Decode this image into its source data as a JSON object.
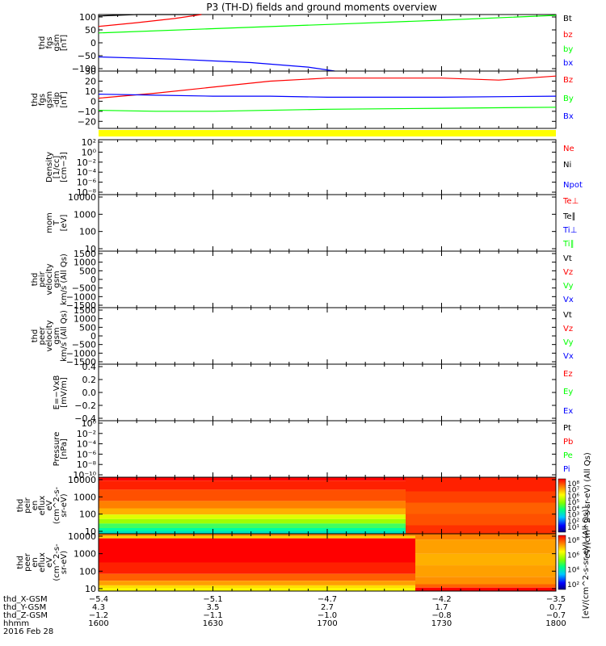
{
  "title": "P3 (TH-D) fields and ground moments overview",
  "colors": {
    "black": "#000000",
    "red": "#ff0000",
    "green": "#00ff00",
    "blue": "#0000ff",
    "yellow": "#ffff00"
  },
  "chart_data": [
    {
      "type": "line",
      "ylabel": [
        "thd",
        "fgs",
        "gsm",
        "[nT]"
      ],
      "ylim": [
        -100,
        100
      ],
      "yticks": [
        "100",
        "50",
        "0",
        "−50",
        "−100"
      ],
      "legend": [
        {
          "name": "Bt",
          "color": "black"
        },
        {
          "name": "bz",
          "color": "red"
        },
        {
          "name": "by",
          "color": "green"
        },
        {
          "name": "bx",
          "color": "blue"
        }
      ],
      "series": [
        {
          "name": "Bt",
          "color": "black",
          "x": [
            1600,
            1610,
            1620,
            1627
          ],
          "y": [
            95,
            100,
            104,
            106
          ]
        },
        {
          "name": "bz",
          "color": "red",
          "x": [
            1600,
            1610,
            1620,
            1627
          ],
          "y": [
            58,
            71,
            86,
            100
          ]
        },
        {
          "name": "by",
          "color": "green",
          "x": [
            1600,
            1630,
            1700,
            1730,
            1800
          ],
          "y": [
            35,
            50,
            65,
            80,
            97
          ]
        },
        {
          "name": "bx",
          "color": "blue",
          "x": [
            1600,
            1620,
            1640,
            1655,
            1702
          ],
          "y": [
            -50,
            -58,
            -70,
            -86,
            -100
          ]
        }
      ]
    },
    {
      "type": "line",
      "ylabel": [
        "thd",
        "fgs",
        "gsm",
        "-dip",
        "[nT]"
      ],
      "ylim": [
        -27,
        30
      ],
      "yticks": [
        "30",
        "20",
        "10",
        "0",
        "−10",
        "−20"
      ],
      "yticks_values": [
        30,
        20,
        10,
        0,
        -10,
        -20
      ],
      "legend": [
        {
          "name": "Bz",
          "color": "red"
        },
        {
          "name": "By",
          "color": "green"
        },
        {
          "name": "Bx",
          "color": "blue"
        }
      ],
      "series": [
        {
          "name": "Bz",
          "color": "red",
          "x": [
            1600,
            1615,
            1630,
            1645,
            1700,
            1715,
            1730,
            1745,
            1800
          ],
          "y": [
            3,
            8,
            14,
            20,
            23,
            23,
            23,
            21,
            25
          ]
        },
        {
          "name": "By",
          "color": "green",
          "x": [
            1600,
            1615,
            1630,
            1700,
            1730,
            1800
          ],
          "y": [
            -9,
            -10,
            -10,
            -8,
            -7,
            -6
          ]
        },
        {
          "name": "Bx",
          "color": "blue",
          "x": [
            1600,
            1615,
            1630,
            1645,
            1700,
            1730,
            1800
          ],
          "y": [
            7,
            6,
            5,
            5,
            4,
            4,
            5
          ]
        }
      ]
    },
    {
      "type": "line",
      "ylabel": [
        "Density",
        "[1/cc]",
        "[cm−3]"
      ],
      "scale": "log",
      "yticks": [
        "10²",
        "10⁰",
        "10⁻²",
        "10⁻⁴",
        "10⁻⁶",
        "10⁻⁸"
      ],
      "legend": [
        {
          "name": "Ne",
          "color": "red"
        },
        {
          "name": "Ni",
          "color": "black"
        },
        {
          "name": "Npot",
          "color": "blue"
        }
      ]
    },
    {
      "type": "line",
      "ylabel": [
        "mom",
        "T",
        "[eV]"
      ],
      "scale": "log",
      "yticks": [
        "10000",
        "1000",
        "100",
        "10"
      ],
      "legend": [
        {
          "name": "Te⊥",
          "color": "red"
        },
        {
          "name": "Te∥",
          "color": "black"
        },
        {
          "name": "Ti⊥",
          "color": "blue"
        },
        {
          "name": "Ti∥",
          "color": "green"
        }
      ]
    },
    {
      "type": "line",
      "ylabel": [
        "thd",
        "peir",
        "velocity",
        "gsm",
        "km/s (All Qs)"
      ],
      "yticks": [
        "1500",
        "1000",
        "500",
        "0",
        "−500",
        "−1000",
        "−1500"
      ],
      "legend": [
        {
          "name": "Vt",
          "color": "black"
        },
        {
          "name": "Vz",
          "color": "red"
        },
        {
          "name": "Vy",
          "color": "green"
        },
        {
          "name": "Vx",
          "color": "blue"
        }
      ]
    },
    {
      "type": "line",
      "ylabel": [
        "thd",
        "peer",
        "velocity",
        "gsm",
        "km/s (All Qs)"
      ],
      "yticks": [
        "1500",
        "1000",
        "500",
        "0",
        "−500",
        "−1000",
        "−1500"
      ],
      "legend": [
        {
          "name": "Vt",
          "color": "black"
        },
        {
          "name": "Vz",
          "color": "red"
        },
        {
          "name": "Vy",
          "color": "green"
        },
        {
          "name": "Vx",
          "color": "blue"
        }
      ]
    },
    {
      "type": "line",
      "ylabel": [
        "E=−VxB",
        "[mV/m]"
      ],
      "yticks": [
        "0.4",
        "0.2",
        "0.0",
        "−0.2",
        "−0.4"
      ],
      "legend": [
        {
          "name": "Ez",
          "color": "red"
        },
        {
          "name": "Ey",
          "color": "green"
        },
        {
          "name": "Ex",
          "color": "blue"
        }
      ]
    },
    {
      "type": "line",
      "ylabel": [
        "Pressure",
        "[nPa]"
      ],
      "scale": "log",
      "yticks": [
        "10⁰",
        "10⁻²",
        "10⁻⁴",
        "10⁻⁶",
        "10⁻⁸",
        "10⁻¹⁰"
      ],
      "legend": [
        {
          "name": "Pt",
          "color": "black"
        },
        {
          "name": "Pb",
          "color": "red"
        },
        {
          "name": "Pe",
          "color": "green"
        },
        {
          "name": "Pi",
          "color": "blue"
        }
      ]
    },
    {
      "type": "heatmap",
      "ylabel": [
        "thd",
        "peir",
        "en",
        "eflux",
        "eV",
        "(cm^2-s-",
        "sr-eV)"
      ],
      "scale": "log",
      "yticks": [
        "10000",
        "1000",
        "100",
        "10"
      ],
      "colorbar_label": "eV/(cm^2-s-sr-eV) (All Qs)",
      "colorbar_ticks": [
        "10⁸",
        "10⁷",
        "10⁶",
        "10⁵",
        "10⁴",
        "10³",
        "10²",
        "10¹"
      ]
    },
    {
      "type": "heatmap",
      "ylabel": [
        "thd",
        "peer",
        "en",
        "eflux",
        "eV",
        "(cm^2-s-",
        "sr-eV)"
      ],
      "scale": "log",
      "yticks": [
        "10000",
        "1000",
        "100",
        "10"
      ],
      "colorbar_label": "[eV/(cm^2-s-sr-eV) (All Qs)]",
      "colorbar_ticks": [
        "10⁸",
        "10⁶",
        "10⁴",
        "10²"
      ]
    }
  ],
  "xaxis": {
    "row_labels": [
      "thd_X-GSM",
      "thd_Y-GSM",
      "thd_Z-GSM",
      "hhmm",
      "2016 Feb 28"
    ],
    "ticks": [
      {
        "x": 1600,
        "X": "−5.4",
        "Y": "4.3",
        "Z": "−1.2",
        "hhmm": "1600"
      },
      {
        "x": 1630,
        "X": "−5.1",
        "Y": "3.5",
        "Z": "−1.1",
        "hhmm": "1630"
      },
      {
        "x": 1700,
        "X": "−4.7",
        "Y": "2.7",
        "Z": "−1.0",
        "hhmm": "1700"
      },
      {
        "x": 1730,
        "X": "−4.2",
        "Y": "1.7",
        "Z": "−0.8",
        "hhmm": "1730"
      },
      {
        "x": 1800,
        "X": "−3.5",
        "Y": "0.7",
        "Z": "−0.7",
        "hhmm": "1800"
      }
    ]
  }
}
